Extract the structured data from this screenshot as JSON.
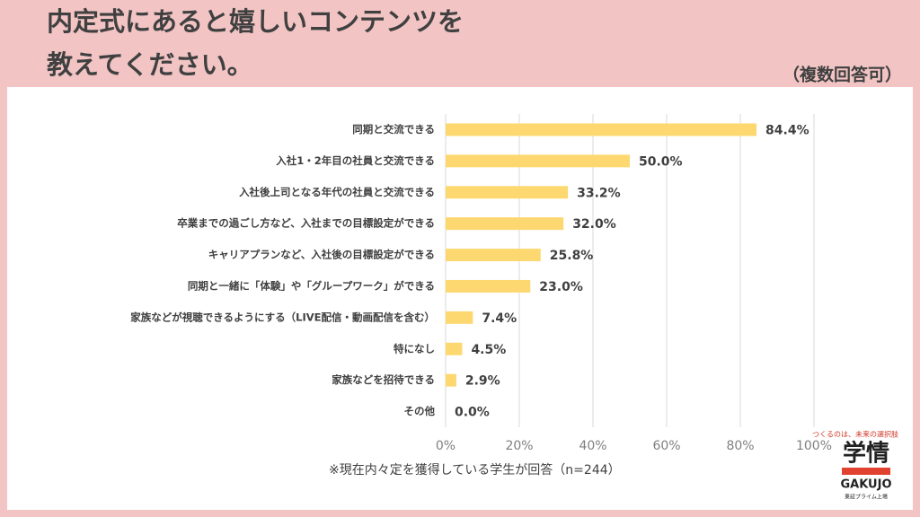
{
  "chart_data": {
    "type": "hbar",
    "title_lines": [
      "内定式にあると嬉しいコンテンツを",
      "教えてください。"
    ],
    "subtitle": "（複数回答可）",
    "note": "※現在内々定を獲得している学生が回答（n=244）",
    "categories": [
      "同期と交流できる",
      "入社1・2年目の社員と交流できる",
      "入社後上司となる年代の社員と交流できる",
      "卒業までの過ごし方など、入社までの目標設定ができる",
      "キャリアプランなど、入社後の目標設定ができる",
      "同期と一緒に「体験」や「グループワーク」ができる",
      "家族などが視聴できるようにする（LIVE配信・動画配信を含む）",
      "特になし",
      "家族などを招待できる",
      "その他"
    ],
    "values": [
      84.4,
      50.0,
      33.2,
      32.0,
      25.8,
      23.0,
      7.4,
      4.5,
      2.9,
      0.0
    ],
    "value_labels": [
      "84.4%",
      "50.0%",
      "33.2%",
      "32.0%",
      "25.8%",
      "23.0%",
      "7.4%",
      "4.5%",
      "2.9%",
      "0.0%"
    ],
    "color": "#fdd871",
    "xlim": [
      0,
      100
    ],
    "xticks": [
      {
        "value": 0,
        "label": "0%"
      },
      {
        "value": 20,
        "label": "20%"
      },
      {
        "value": 40,
        "label": "40%"
      },
      {
        "value": 60,
        "label": "60%"
      },
      {
        "value": 80,
        "label": "80%"
      },
      {
        "value": 100,
        "label": "100%"
      }
    ],
    "grid": true
  },
  "logo": {
    "tagline": "つくるのは、未来の選択肢",
    "name": "学情",
    "roman": "GAKUJO",
    "listing": "東証プライム上場"
  }
}
